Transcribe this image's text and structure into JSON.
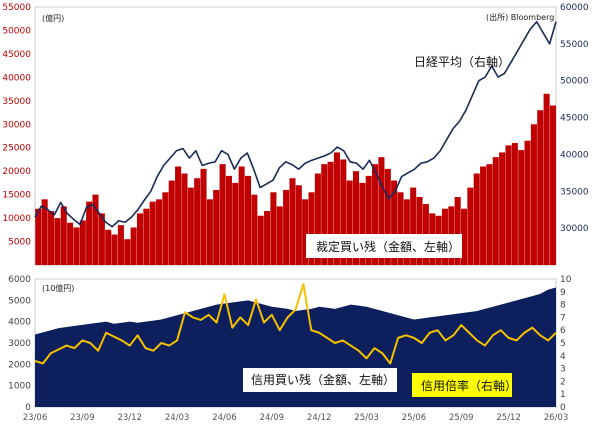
{
  "chart_data": [
    {
      "type": "bar+line",
      "title": "",
      "left_unit": "(億円)",
      "source": "(出所) Bloomberg",
      "left_ylim": [
        0,
        55000
      ],
      "left_ticks": [
        "5000",
        "10000",
        "15000",
        "20000",
        "25000",
        "30000",
        "35000",
        "40000",
        "45000",
        "50000",
        "55000"
      ],
      "right_ylim": [
        25000,
        60000
      ],
      "right_ticks": [
        "30000",
        "35000",
        "40000",
        "45000",
        "50000",
        "55000",
        "60000"
      ],
      "series": [
        {
          "name": "裁定買い残（金額、左軸）",
          "kind": "bar",
          "color": "#c00000",
          "values": [
            12000,
            14000,
            11500,
            10000,
            12500,
            9000,
            8000,
            9500,
            13500,
            15000,
            11000,
            7500,
            6500,
            8500,
            5500,
            8000,
            11000,
            12000,
            13500,
            14000,
            15500,
            18000,
            21000,
            19500,
            16500,
            18500,
            20500,
            14000,
            16000,
            21500,
            19000,
            17500,
            21000,
            19000,
            15000,
            10500,
            11500,
            15500,
            12500,
            16000,
            18500,
            17000,
            14000,
            15500,
            19500,
            21500,
            22000,
            24000,
            22500,
            18000,
            20000,
            17500,
            19000,
            21500,
            23000,
            20500,
            18000,
            15500,
            14000,
            16500,
            14500,
            13000,
            11000,
            10500,
            12000,
            12500,
            14500,
            12000,
            16500,
            19500,
            21000,
            21500,
            23000,
            24000,
            25500,
            26000,
            24500,
            26500,
            30000,
            33000,
            36500,
            34000
          ]
        },
        {
          "name": "日経平均（右軸）",
          "kind": "line",
          "color": "#1a2a5a",
          "values": [
            31500,
            33000,
            32500,
            31800,
            33500,
            32000,
            31200,
            30500,
            32800,
            33200,
            32000,
            30800,
            30200,
            31000,
            30800,
            31500,
            32500,
            33800,
            35000,
            37000,
            38500,
            39500,
            40500,
            40800,
            39500,
            40500,
            38500,
            38800,
            39000,
            40500,
            40000,
            38000,
            39500,
            40200,
            38000,
            35500,
            36000,
            36500,
            38200,
            39000,
            38600,
            38000,
            38800,
            39200,
            39500,
            39800,
            40200,
            41000,
            40500,
            39000,
            38800,
            38000,
            39200,
            37500,
            35600,
            34000,
            35000,
            37000,
            37500,
            38000,
            38800,
            39000,
            39500,
            40500,
            42000,
            43500,
            44500,
            46000,
            48000,
            50000,
            50500,
            52000,
            50500,
            51000,
            52500,
            54000,
            55500,
            57000,
            58000,
            56500,
            55000,
            58000
          ]
        }
      ]
    },
    {
      "type": "area+line",
      "title": "",
      "left_unit": "(10億円)",
      "left_ylim": [
        0,
        6000
      ],
      "left_ticks": [
        "0",
        "1000",
        "2000",
        "3000",
        "4000",
        "5000",
        "6000"
      ],
      "right_ylim": [
        0,
        10
      ],
      "right_ticks": [
        "0",
        "1",
        "2",
        "3",
        "4",
        "5",
        "6",
        "7",
        "8",
        "9",
        "10"
      ],
      "x_tick_labels": [
        "23/06",
        "23/09",
        "23/12",
        "24/03",
        "24/06",
        "24/09",
        "24/12",
        "25/03",
        "25/06",
        "25/09",
        "25/12",
        "26/03"
      ],
      "series": [
        {
          "name": "信用買い残（金額、左軸）",
          "kind": "area",
          "color": "#0d1f5c",
          "values": [
            3400,
            3500,
            3600,
            3700,
            3750,
            3800,
            3850,
            3900,
            3950,
            4000,
            3900,
            3950,
            4000,
            3950,
            4000,
            4050,
            4100,
            4200,
            4300,
            4400,
            4500,
            4600,
            4700,
            4800,
            4850,
            4900,
            4950,
            5000,
            4900,
            4800,
            4700,
            4650,
            4600,
            4500,
            4550,
            4600,
            4700,
            4650,
            4600,
            4700,
            4800,
            4750,
            4700,
            4600,
            4500,
            4400,
            4300,
            4200,
            4100,
            4150,
            4200,
            4250,
            4300,
            4350,
            4400,
            4450,
            4500,
            4600,
            4700,
            4800,
            4900,
            5000,
            5100,
            5200,
            5300,
            5500,
            5600
          ]
        },
        {
          "name": "信用倍率（右軸）",
          "kind": "line",
          "color": "#f5c000",
          "values": [
            3.6,
            3.4,
            4.2,
            4.5,
            4.8,
            4.6,
            5.2,
            5.0,
            4.4,
            5.8,
            5.5,
            5.2,
            4.8,
            5.6,
            4.6,
            4.4,
            5.0,
            4.8,
            5.2,
            7.4,
            7.0,
            6.8,
            7.2,
            6.6,
            8.8,
            6.2,
            7.0,
            6.4,
            8.4,
            6.6,
            7.2,
            6.0,
            7.0,
            7.6,
            9.6,
            6.0,
            5.8,
            5.4,
            5.0,
            5.2,
            4.8,
            4.4,
            3.8,
            4.6,
            4.2,
            3.4,
            5.4,
            5.6,
            5.4,
            5.0,
            5.8,
            6.0,
            5.2,
            5.6,
            6.4,
            5.8,
            5.2,
            4.8,
            5.6,
            6.0,
            5.4,
            5.2,
            5.8,
            6.2,
            5.6,
            5.2,
            5.8
          ]
        }
      ]
    }
  ],
  "annotations": {
    "nikkei_label": "日経平均（右軸）",
    "arb_label": "裁定買い残（金額、左軸）",
    "margin_label": "信用買い残（金額、左軸）",
    "ratio_label": "信用倍率（右軸）"
  },
  "colors": {
    "arb_bar": "#c00000",
    "nikkei_line": "#1a2a5a",
    "margin_area": "#0d1f5c",
    "ratio_line": "#f5c000",
    "label_box_yellow": "#ffff00"
  }
}
